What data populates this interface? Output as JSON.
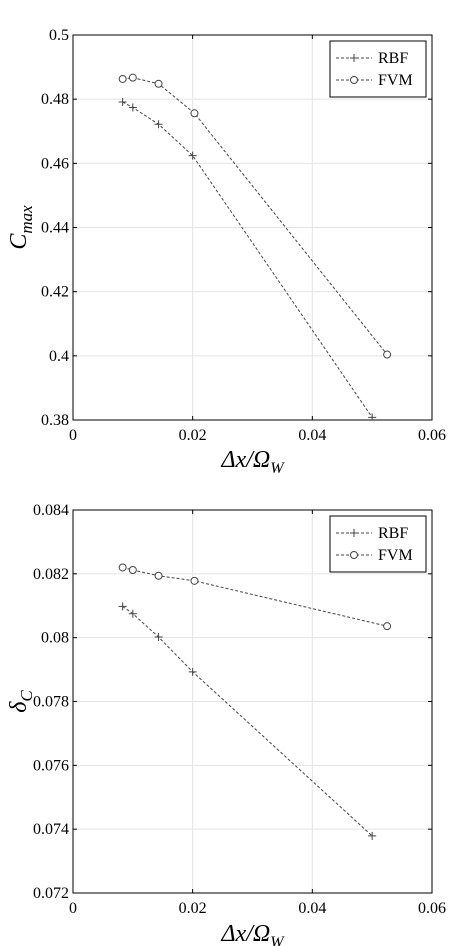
{
  "chart_data": [
    {
      "type": "line",
      "title": "",
      "xlabel": "Δx/Ω_W",
      "ylabel": "C_max",
      "xlim": [
        0,
        0.06
      ],
      "ylim": [
        0.38,
        0.5
      ],
      "xticks": [
        "0",
        "0.02",
        "0.04",
        "0.06"
      ],
      "yticks": [
        "0.38",
        "0.4",
        "0.42",
        "0.44",
        "0.46",
        "0.48",
        "0.5"
      ],
      "grid": true,
      "legend": "top-right",
      "series": [
        {
          "name": "RBF",
          "marker": "plus",
          "x": [
            0.0083,
            0.01,
            0.0143,
            0.02,
            0.05
          ],
          "y": [
            0.4791,
            0.4774,
            0.4722,
            0.4624,
            0.3808
          ]
        },
        {
          "name": "FVM",
          "marker": "circle",
          "x": [
            0.0083,
            0.01,
            0.0143,
            0.0203,
            0.0525
          ],
          "y": [
            0.4863,
            0.4867,
            0.4848,
            0.4756,
            0.4004
          ]
        }
      ]
    },
    {
      "type": "line",
      "title": "",
      "xlabel": "Δx/Ω_W",
      "ylabel": "δ_C",
      "xlim": [
        0,
        0.06
      ],
      "ylim": [
        0.072,
        0.084
      ],
      "xticks": [
        "0",
        "0.02",
        "0.04",
        "0.06"
      ],
      "yticks": [
        "0.072",
        "0.074",
        "0.076",
        "0.078",
        "0.08",
        "0.082",
        "0.084"
      ],
      "grid": true,
      "legend": "top-right",
      "series": [
        {
          "name": "RBF",
          "marker": "plus",
          "x": [
            0.0083,
            0.01,
            0.0143,
            0.02,
            0.05
          ],
          "y": [
            0.08098,
            0.08075,
            0.08002,
            0.07893,
            0.07379
          ]
        },
        {
          "name": "FVM",
          "marker": "circle",
          "x": [
            0.0083,
            0.01,
            0.0143,
            0.0203,
            0.0525
          ],
          "y": [
            0.0822,
            0.08212,
            0.08194,
            0.08178,
            0.08036
          ]
        }
      ]
    }
  ]
}
